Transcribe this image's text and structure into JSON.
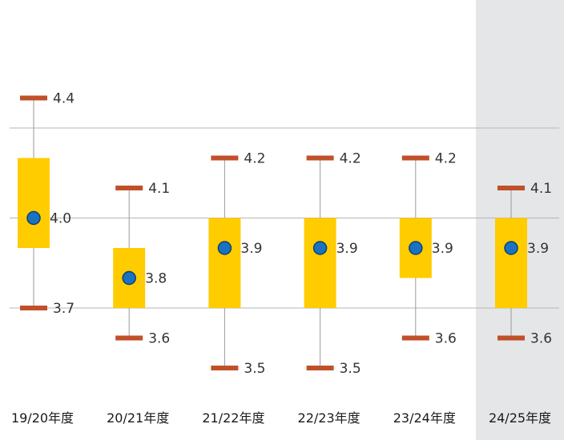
{
  "chart_data": {
    "type": "box",
    "title": "",
    "xlabel": "",
    "ylabel": "",
    "ylim": [
      3.3,
      4.5
    ],
    "gridlines": [
      3.7,
      4.0,
      4.3
    ],
    "categories": [
      "19/20年度",
      "20/21年度",
      "21/22年度",
      "22/23年度",
      "23/24年度",
      "24/25年度"
    ],
    "highlighted_category": "24/25年度",
    "series": [
      {
        "name": "max",
        "values": [
          4.4,
          4.1,
          4.2,
          4.2,
          4.2,
          4.1
        ],
        "labels": [
          "4.4",
          "4.1",
          "4.2",
          "4.2",
          "4.2",
          "4.1"
        ]
      },
      {
        "name": "box_high",
        "values": [
          4.2,
          3.9,
          4.0,
          4.0,
          4.0,
          4.0
        ]
      },
      {
        "name": "median",
        "values": [
          4.0,
          3.8,
          3.9,
          3.9,
          3.9,
          3.9
        ],
        "labels": [
          "4.0",
          "3.8",
          "3.9",
          "3.9",
          "3.9",
          "3.9"
        ]
      },
      {
        "name": "box_low",
        "values": [
          3.9,
          3.7,
          3.7,
          3.7,
          3.8,
          3.7
        ]
      },
      {
        "name": "min",
        "values": [
          3.7,
          3.6,
          3.5,
          3.5,
          3.6,
          3.6
        ],
        "labels": [
          "3.7",
          "3.6",
          "3.5",
          "3.5",
          "3.6",
          "3.6"
        ]
      }
    ],
    "colors": {
      "box": "#FFCC00",
      "median_dot": "#1A73C2",
      "median_dot_stroke": "#0F3E6E",
      "cap": "#C0502A",
      "whisker": "#9A9A9A",
      "grid": "#B5B5B5",
      "highlight_bg": "#E5E6E8"
    }
  }
}
